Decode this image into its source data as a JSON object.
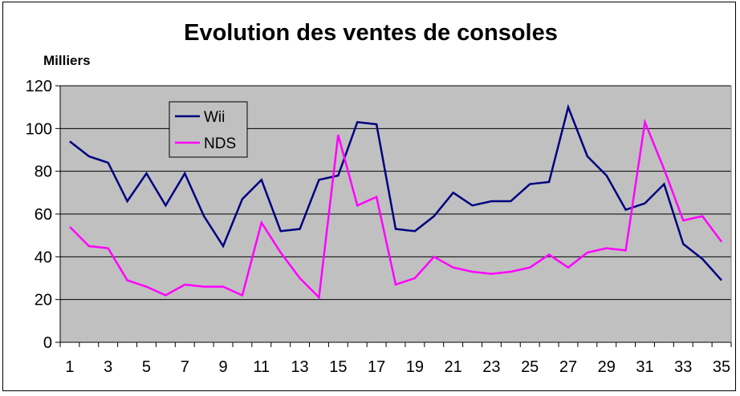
{
  "chart_data": {
    "type": "line",
    "title": "Evolution des ventes de consoles",
    "ylabel": "Milliers",
    "xlabel": "",
    "x": [
      1,
      2,
      3,
      4,
      5,
      6,
      7,
      8,
      9,
      10,
      11,
      12,
      13,
      14,
      15,
      16,
      17,
      18,
      19,
      20,
      21,
      22,
      23,
      24,
      25,
      26,
      27,
      28,
      29,
      30,
      31,
      32,
      33,
      34,
      35
    ],
    "x_tick_labels": [
      1,
      3,
      5,
      7,
      9,
      11,
      13,
      15,
      17,
      19,
      21,
      23,
      25,
      27,
      29,
      31,
      33,
      35
    ],
    "y_tick_labels": [
      0,
      20,
      40,
      60,
      80,
      100,
      120
    ],
    "ylim": [
      0,
      120
    ],
    "grid": true,
    "legend_placement": "top-left",
    "series": [
      {
        "name": "Wii",
        "color": "#000080",
        "values": [
          94,
          87,
          84,
          66,
          79,
          64,
          79,
          59,
          45,
          67,
          76,
          52,
          53,
          76,
          78,
          103,
          102,
          53,
          52,
          59,
          70,
          64,
          66,
          66,
          74,
          75,
          110,
          87,
          78,
          62,
          65,
          74,
          46,
          39,
          29
        ]
      },
      {
        "name": "NDS",
        "color": "#ff00ff",
        "values": [
          54,
          45,
          44,
          29,
          26,
          22,
          27,
          26,
          26,
          22,
          56,
          42,
          30,
          21,
          97,
          64,
          68,
          27,
          30,
          40,
          35,
          33,
          32,
          33,
          35,
          41,
          35,
          42,
          44,
          43,
          103,
          81,
          57,
          59,
          47
        ]
      }
    ],
    "plot_background": "#c0c0c0"
  }
}
